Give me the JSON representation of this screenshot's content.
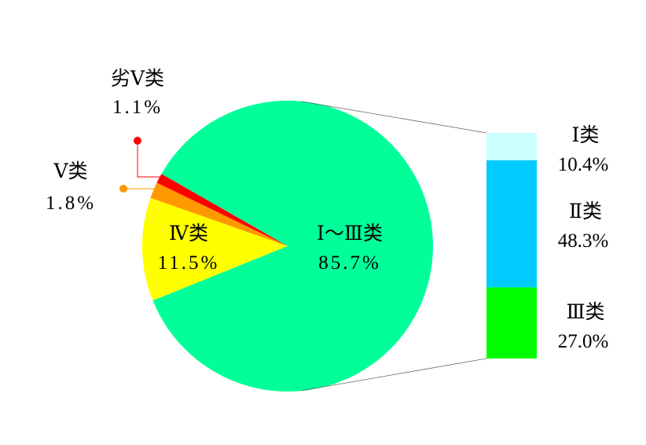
{
  "chart_data": [
    {
      "type": "pie",
      "slices": [
        {
          "label": "Ⅰ～Ⅲ类",
          "value": 85.7,
          "value_label": "85.7%",
          "color": "#00FF99"
        },
        {
          "label": "Ⅳ类",
          "value": 11.5,
          "value_label": "11.5%",
          "color": "#FFFF00"
        },
        {
          "label": "Ⅴ类",
          "value": 1.8,
          "value_label": "1.8%",
          "color": "#FF9900"
        },
        {
          "label": "劣Ⅴ类",
          "value": 1.1,
          "value_label": "1.1%",
          "color": "#FF0000"
        }
      ]
    },
    {
      "type": "bar",
      "stacked": true,
      "breakdown_of": "Ⅰ～Ⅲ类",
      "segments": [
        {
          "label": "Ⅰ类",
          "value": 10.4,
          "value_label": "10.4%",
          "color": "#CCFFFF"
        },
        {
          "label": "Ⅱ类",
          "value": 48.3,
          "value_label": "48.3%",
          "color": "#00CCFF"
        },
        {
          "label": "Ⅲ类",
          "value": 27.0,
          "value_label": "27.0%",
          "color": "#00FF00"
        }
      ]
    }
  ]
}
